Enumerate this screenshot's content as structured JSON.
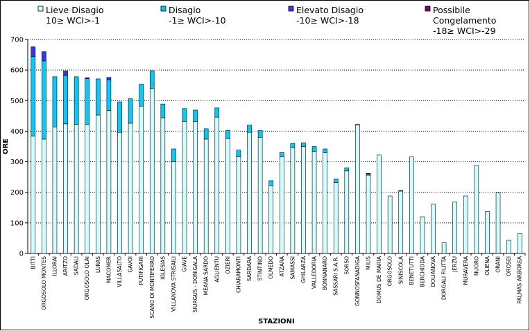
{
  "chart_data": {
    "type": "bar",
    "stacked": true,
    "xlabel": "STAZIONI",
    "ylabel": "ORE",
    "ylim": [
      0,
      700
    ],
    "yticks": [
      0,
      100,
      200,
      300,
      400,
      500,
      600,
      700
    ],
    "grid": true,
    "legend_position": "top",
    "categories": [
      "BITTI",
      "ORGOSOLO MONTES",
      "ILLORAI",
      "ARITZO",
      "SADALI",
      "ORGOSOLO OLAI",
      "LURAS",
      "MACOMER",
      "VILLASALTO",
      "GAVOI",
      "PUTIFIGARI",
      "SCANO DI MONTIFERRO",
      "IGLESIAS",
      "VILLANOVA STRISAILI",
      "GIAVE",
      "SIURGUS - DONIGALA",
      "MEANA SARDO",
      "AGLIENTU",
      "OZIERI",
      "CHIARAMONTI",
      "SARDARA",
      "STINTINO",
      "OLMEDO",
      "ATZARA",
      "SAMASSI",
      "GHILARZA",
      "VALLEDORIA",
      "BONNANARO",
      "SASSARI S.A.R.",
      "SORSO",
      "GONNOSFANADIGA",
      "MILIS",
      "DOMUS DE MARIA",
      "ORGOSOLO",
      "SINISCOLA",
      "BENETUTTI",
      "BERCHIDDA",
      "DOLIANOVA",
      "DORGALI FILITTA",
      "JERZU",
      "MURAVERA",
      "NUORO",
      "OLIENA",
      "ORANI",
      "OROSEI",
      "PALMAS ARBOREA"
    ],
    "series": [
      {
        "name": "Lieve Disagio 10≥ WCI>-1",
        "color": "#ccffff",
        "values": [
          384,
          374,
          414,
          424,
          422,
          422,
          453,
          468,
          396,
          426,
          482,
          540,
          444,
          300,
          432,
          432,
          374,
          446,
          376,
          316,
          396,
          380,
          222,
          316,
          346,
          350,
          334,
          330,
          232,
          270,
          420,
          256,
          322,
          188,
          204,
          316,
          120,
          161,
          35,
          168,
          188,
          288,
          137,
          198,
          43,
          65
        ]
      },
      {
        "name": "Disagio -1≥ WCI>-10",
        "color": "#00ccff",
        "values": [
          260,
          256,
          164,
          158,
          156,
          150,
          118,
          100,
          100,
          80,
          72,
          58,
          45,
          42,
          42,
          37,
          34,
          30,
          27,
          22,
          24,
          22,
          16,
          14,
          14,
          12,
          16,
          12,
          12,
          10,
          2,
          4,
          0,
          0,
          2,
          0,
          0,
          0,
          0,
          0,
          0,
          0,
          0,
          0,
          0,
          0
        ]
      },
      {
        "name": "Elevato Disagio -10≥ WCI>-18",
        "color": "#3333ff",
        "values": [
          32,
          30,
          0,
          15,
          0,
          3,
          0,
          8,
          0,
          0,
          0,
          0,
          0,
          0,
          0,
          0,
          0,
          0,
          0,
          0,
          0,
          0,
          0,
          0,
          0,
          0,
          0,
          0,
          0,
          0,
          0,
          2,
          0,
          0,
          0,
          0,
          0,
          0,
          0,
          0,
          0,
          0,
          0,
          0,
          0,
          0
        ]
      },
      {
        "name": "Possibile Congelamento -18≥ WCI>-29",
        "color": "#800080",
        "values": [
          0,
          0,
          0,
          0,
          0,
          0,
          0,
          0,
          0,
          0,
          0,
          0,
          0,
          0,
          0,
          0,
          0,
          0,
          0,
          0,
          0,
          0,
          0,
          0,
          0,
          0,
          0,
          0,
          0,
          0,
          0,
          0,
          0,
          0,
          0,
          0,
          0,
          0,
          0,
          0,
          0,
          0,
          0,
          0,
          0,
          0
        ]
      }
    ],
    "legend": [
      {
        "lines": [
          "Lieve Disagio",
          "10≥ WCI>-1"
        ],
        "color": "#ccffff"
      },
      {
        "lines": [
          "Disagio",
          "-1≥ WCI>-10"
        ],
        "color": "#00ccff"
      },
      {
        "lines": [
          "Elevato Disagio",
          "-10≥ WCI>-18"
        ],
        "color": "#3333ff"
      },
      {
        "lines": [
          "Possibile",
          "Congelamento",
          "-18≥ WCI>-29"
        ],
        "color": "#800080"
      }
    ]
  }
}
